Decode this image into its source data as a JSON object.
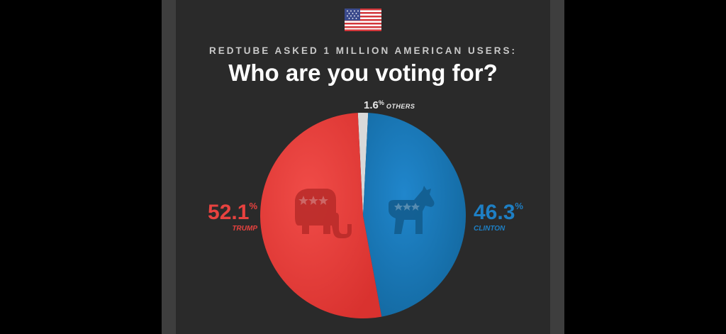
{
  "header": {
    "subtitle": "REDTUBE ASKED 1 MILLION AMERICAN USERS:",
    "title": "Who are you voting for?"
  },
  "icons": {
    "flag": "us-flag-icon",
    "republican": "elephant-icon",
    "democrat": "donkey-icon"
  },
  "colors": {
    "background": "#000000",
    "panel": "#2a2a2a",
    "trump": "#e8423f",
    "clinton": "#1e7fc4",
    "others": "#d9d9d9"
  },
  "chart_data": {
    "type": "pie",
    "title": "Who are you voting for?",
    "subtitle": "REDTUBE ASKED 1 MILLION AMERICAN USERS:",
    "slices": [
      {
        "name": "TRUMP",
        "value": 52.1,
        "value_label": "52.1",
        "color": "#e8423f"
      },
      {
        "name": "CLINTON",
        "value": 46.3,
        "value_label": "46.3",
        "color": "#1e7fc4"
      },
      {
        "name": "OTHERS",
        "value": 1.6,
        "value_label": "1.6",
        "color": "#d9d9d9"
      }
    ],
    "unit": "%",
    "legend": "none"
  }
}
